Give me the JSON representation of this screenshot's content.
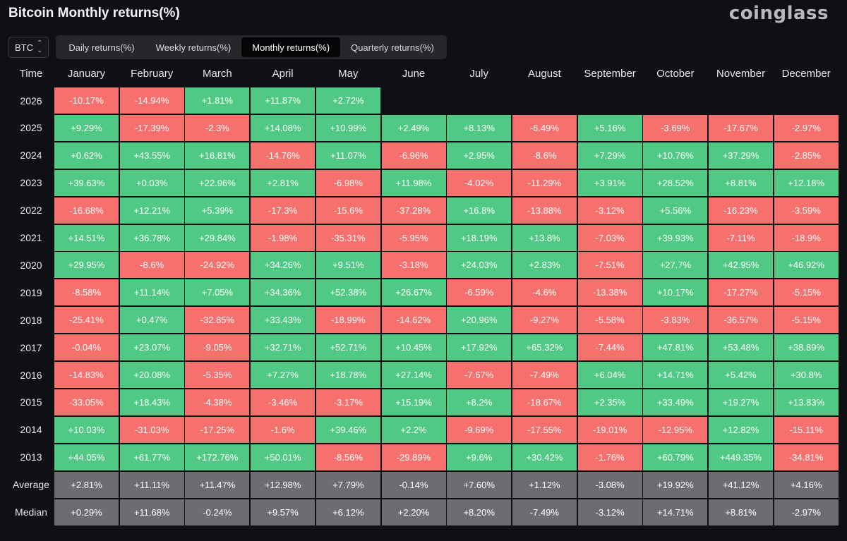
{
  "title": "Bitcoin Monthly returns(%)",
  "logo": "coinglass",
  "asset_select": {
    "value": "BTC",
    "icon": "chevron-up-down-icon"
  },
  "tabs": [
    {
      "label": "Daily returns(%)",
      "active": false
    },
    {
      "label": "Weekly returns(%)",
      "active": false
    },
    {
      "label": "Monthly returns(%)",
      "active": true
    },
    {
      "label": "Quarterly returns(%)",
      "active": false
    }
  ],
  "colors": {
    "positive": "#4fc983",
    "negative": "#f6706e",
    "stat": "#6c6d71",
    "background": "#0f1013"
  },
  "table": {
    "time_header": "Time",
    "months": [
      "January",
      "February",
      "March",
      "April",
      "May",
      "June",
      "July",
      "August",
      "September",
      "October",
      "November",
      "December"
    ],
    "rows": [
      {
        "year": "2026",
        "values": [
          "-10.17%",
          "-14.94%",
          "+1.81%",
          "+11.87%",
          "+2.72%",
          "",
          "",
          "",
          "",
          "",
          "",
          ""
        ]
      },
      {
        "year": "2025",
        "values": [
          "+9.29%",
          "-17.39%",
          "-2.3%",
          "+14.08%",
          "+10.99%",
          "+2.49%",
          "+8.13%",
          "-6.49%",
          "+5.16%",
          "-3.69%",
          "-17.67%",
          "-2.97%"
        ]
      },
      {
        "year": "2024",
        "values": [
          "+0.62%",
          "+43.55%",
          "+16.81%",
          "-14.76%",
          "+11.07%",
          "-6.96%",
          "+2.95%",
          "-8.6%",
          "+7.29%",
          "+10.76%",
          "+37.29%",
          "-2.85%"
        ]
      },
      {
        "year": "2023",
        "values": [
          "+39.63%",
          "+0.03%",
          "+22.96%",
          "+2.81%",
          "-6.98%",
          "+11.98%",
          "-4.02%",
          "-11.29%",
          "+3.91%",
          "+28.52%",
          "+8.81%",
          "+12.18%"
        ]
      },
      {
        "year": "2022",
        "values": [
          "-16.68%",
          "+12.21%",
          "+5.39%",
          "-17.3%",
          "-15.6%",
          "-37.28%",
          "+16.8%",
          "-13.88%",
          "-3.12%",
          "+5.56%",
          "-16.23%",
          "-3.59%"
        ]
      },
      {
        "year": "2021",
        "values": [
          "+14.51%",
          "+36.78%",
          "+29.84%",
          "-1.98%",
          "-35.31%",
          "-5.95%",
          "+18.19%",
          "+13.8%",
          "-7.03%",
          "+39.93%",
          "-7.11%",
          "-18.9%"
        ]
      },
      {
        "year": "2020",
        "values": [
          "+29.95%",
          "-8.6%",
          "-24.92%",
          "+34.26%",
          "+9.51%",
          "-3.18%",
          "+24.03%",
          "+2.83%",
          "-7.51%",
          "+27.7%",
          "+42.95%",
          "+46.92%"
        ]
      },
      {
        "year": "2019",
        "values": [
          "-8.58%",
          "+11.14%",
          "+7.05%",
          "+34.36%",
          "+52.38%",
          "+26.67%",
          "-6.59%",
          "-4.6%",
          "-13.38%",
          "+10.17%",
          "-17.27%",
          "-5.15%"
        ]
      },
      {
        "year": "2018",
        "values": [
          "-25.41%",
          "+0.47%",
          "-32.85%",
          "+33.43%",
          "-18.99%",
          "-14.62%",
          "+20.96%",
          "-9.27%",
          "-5.58%",
          "-3.83%",
          "-36.57%",
          "-5.15%"
        ]
      },
      {
        "year": "2017",
        "values": [
          "-0.04%",
          "+23.07%",
          "-9.05%",
          "+32.71%",
          "+52.71%",
          "+10.45%",
          "+17.92%",
          "+65.32%",
          "-7.44%",
          "+47.81%",
          "+53.48%",
          "+38.89%"
        ]
      },
      {
        "year": "2016",
        "values": [
          "-14.83%",
          "+20.08%",
          "-5.35%",
          "+7.27%",
          "+18.78%",
          "+27.14%",
          "-7.67%",
          "-7.49%",
          "+6.04%",
          "+14.71%",
          "+5.42%",
          "+30.8%"
        ]
      },
      {
        "year": "2015",
        "values": [
          "-33.05%",
          "+18.43%",
          "-4.38%",
          "-3.46%",
          "-3.17%",
          "+15.19%",
          "+8.2%",
          "-18.67%",
          "+2.35%",
          "+33.49%",
          "+19.27%",
          "+13.83%"
        ]
      },
      {
        "year": "2014",
        "values": [
          "+10.03%",
          "-31.03%",
          "-17.25%",
          "-1.6%",
          "+39.46%",
          "+2.2%",
          "-9.69%",
          "-17.55%",
          "-19.01%",
          "-12.95%",
          "+12.82%",
          "-15.11%"
        ]
      },
      {
        "year": "2013",
        "values": [
          "+44.05%",
          "+61.77%",
          "+172.76%",
          "+50.01%",
          "-8.56%",
          "-29.89%",
          "+9.6%",
          "+30.42%",
          "-1.76%",
          "+60.79%",
          "+449.35%",
          "-34.81%"
        ]
      }
    ],
    "stats": [
      {
        "label": "Average",
        "values": [
          "+2.81%",
          "+11.11%",
          "+11.47%",
          "+12.98%",
          "+7.79%",
          "-0.14%",
          "+7.60%",
          "+1.12%",
          "-3.08%",
          "+19.92%",
          "+41.12%",
          "+4.16%"
        ]
      },
      {
        "label": "Median",
        "values": [
          "+0.29%",
          "+11.68%",
          "-0.24%",
          "+9.57%",
          "+6.12%",
          "+2.20%",
          "+8.20%",
          "-7.49%",
          "-3.12%",
          "+14.71%",
          "+8.81%",
          "-2.97%"
        ]
      }
    ]
  }
}
